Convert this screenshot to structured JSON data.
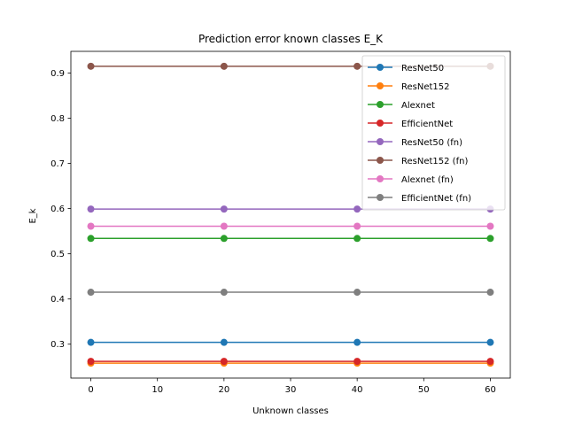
{
  "chart_data": {
    "type": "line",
    "title": "Prediction error known classes E_K",
    "xlabel": "Unknown classes",
    "ylabel": "E_k",
    "x": [
      0,
      20,
      40,
      60
    ],
    "xlim": [
      -3,
      63
    ],
    "ylim": [
      0.225,
      0.948
    ],
    "xticks": [
      0,
      10,
      20,
      30,
      40,
      50,
      60
    ],
    "yticks": [
      0.3,
      0.4,
      0.5,
      0.6,
      0.7,
      0.8,
      0.9
    ],
    "grid": false,
    "legend": "upper right",
    "series": [
      {
        "name": "ResNet50",
        "color": "#1f77b4",
        "values": [
          0.304,
          0.304,
          0.304,
          0.304
        ]
      },
      {
        "name": "ResNet152",
        "color": "#ff7f0e",
        "values": [
          0.258,
          0.258,
          0.258,
          0.258
        ]
      },
      {
        "name": "Alexnet",
        "color": "#2ca02c",
        "values": [
          0.534,
          0.534,
          0.534,
          0.534
        ]
      },
      {
        "name": "EfficientNet",
        "color": "#d62728",
        "values": [
          0.262,
          0.262,
          0.262,
          0.262
        ]
      },
      {
        "name": "ResNet50 (fn)",
        "color": "#9467bd",
        "values": [
          0.599,
          0.599,
          0.599,
          0.599
        ]
      },
      {
        "name": "ResNet152 (fn)",
        "color": "#8c564b",
        "values": [
          0.915,
          0.915,
          0.915,
          0.915
        ]
      },
      {
        "name": "Alexnet (fn)",
        "color": "#e377c2",
        "values": [
          0.561,
          0.561,
          0.561,
          0.561
        ]
      },
      {
        "name": "EfficientNet (fn)",
        "color": "#7f7f7f",
        "values": [
          0.415,
          0.415,
          0.415,
          0.415
        ]
      }
    ]
  }
}
